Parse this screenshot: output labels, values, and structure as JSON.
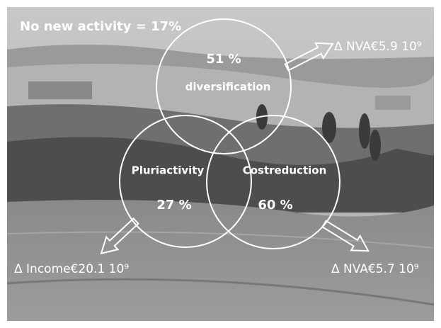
{
  "overall": "No new activity = 17%",
  "circles": [
    {
      "label": "diversification",
      "share": "51 %"
    },
    {
      "label": "Pluriactivity",
      "share": "27 %"
    },
    {
      "label": "Costreduction",
      "share": "60 %"
    }
  ],
  "effects": [
    "Δ NVA€5.9 10⁹",
    "Δ Income€20.1 10⁹",
    "Δ NVA€5.7 10⁹"
  ]
}
